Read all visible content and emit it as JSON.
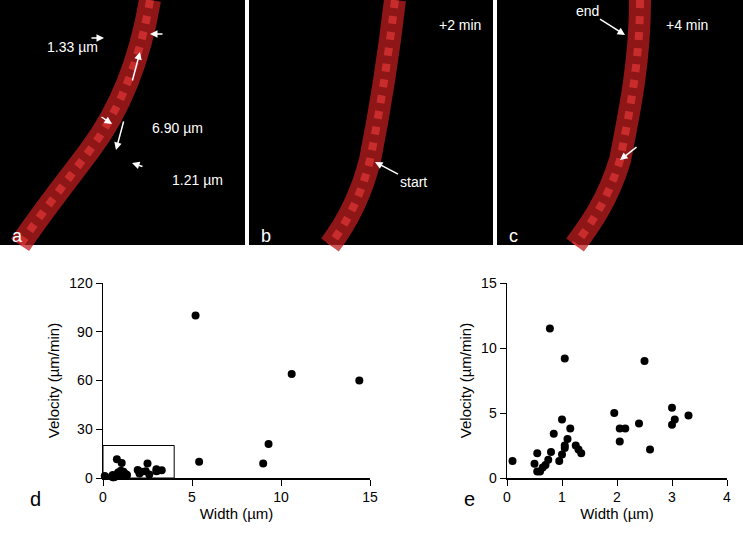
{
  "chart_data": [
    {
      "type": "scatter",
      "panel_label": "d",
      "x": [
        0.1,
        0.5,
        0.55,
        0.55,
        0.6,
        0.65,
        0.7,
        0.75,
        0.8,
        0.78,
        0.85,
        0.95,
        1.0,
        1.0,
        1.05,
        1.05,
        1.05,
        1.1,
        1.15,
        1.25,
        1.3,
        1.35,
        1.95,
        2.05,
        2.05,
        2.15,
        2.4,
        2.5,
        2.6,
        3.0,
        3.0,
        3.05,
        3.3,
        5.2,
        5.4,
        9.0,
        9.3,
        10.6,
        14.4
      ],
      "values": [
        1.3,
        1.1,
        1.9,
        0.5,
        0.5,
        0.8,
        1.0,
        1.4,
        2.0,
        11.5,
        3.4,
        1.3,
        4.5,
        1.8,
        9.2,
        2.5,
        2.3,
        3.0,
        3.8,
        2.5,
        2.2,
        1.9,
        5.0,
        3.8,
        2.8,
        3.8,
        4.2,
        9.0,
        2.2,
        5.4,
        4.1,
        4.5,
        4.8,
        100,
        10,
        9,
        21,
        64,
        60
      ],
      "x_label": "Width (µm)",
      "y_label": "Velocity (µm/min)",
      "xlim": [
        0,
        15
      ],
      "ylim": [
        0,
        120
      ],
      "xticks": [
        0,
        5,
        10,
        15
      ],
      "yticks": [
        0,
        30,
        60,
        90,
        120
      ],
      "color": "#000000",
      "marker": "circle",
      "zoom_box": {
        "x": [
          0,
          4
        ],
        "y": [
          0,
          20
        ]
      }
    },
    {
      "type": "scatter",
      "panel_label": "e",
      "x": [
        0.1,
        0.5,
        0.55,
        0.55,
        0.6,
        0.65,
        0.7,
        0.75,
        0.8,
        0.78,
        0.85,
        0.95,
        1.0,
        1.0,
        1.05,
        1.05,
        1.05,
        1.1,
        1.15,
        1.25,
        1.3,
        1.35,
        1.95,
        2.05,
        2.05,
        2.15,
        2.4,
        2.5,
        2.6,
        3.0,
        3.0,
        3.05,
        3.3
      ],
      "values": [
        1.3,
        1.1,
        1.9,
        0.5,
        0.5,
        0.8,
        1.0,
        1.4,
        2.0,
        11.5,
        3.4,
        1.3,
        4.5,
        1.8,
        9.2,
        2.5,
        2.3,
        3.0,
        3.8,
        2.5,
        2.2,
        1.9,
        5.0,
        3.8,
        2.8,
        3.8,
        4.2,
        9.0,
        2.2,
        5.4,
        4.1,
        4.5,
        4.8
      ],
      "x_label": "Width (µm)",
      "y_label": "Velocity (µm/min)",
      "xlim": [
        0,
        4
      ],
      "ylim": [
        0,
        15
      ],
      "xticks": [
        0,
        1,
        2,
        3,
        4
      ],
      "yticks": [
        0,
        5,
        10,
        15
      ],
      "color": "#000000",
      "marker": "circle"
    }
  ],
  "images": [
    {
      "panel_label": "a",
      "annotations": [
        "1.33 µm",
        "6.90 µm",
        "1.21 µm"
      ]
    },
    {
      "panel_label": "b",
      "annotations": [
        "+2 min",
        "start"
      ]
    },
    {
      "panel_label": "c",
      "annotations": [
        "+4 min",
        "end"
      ]
    }
  ]
}
